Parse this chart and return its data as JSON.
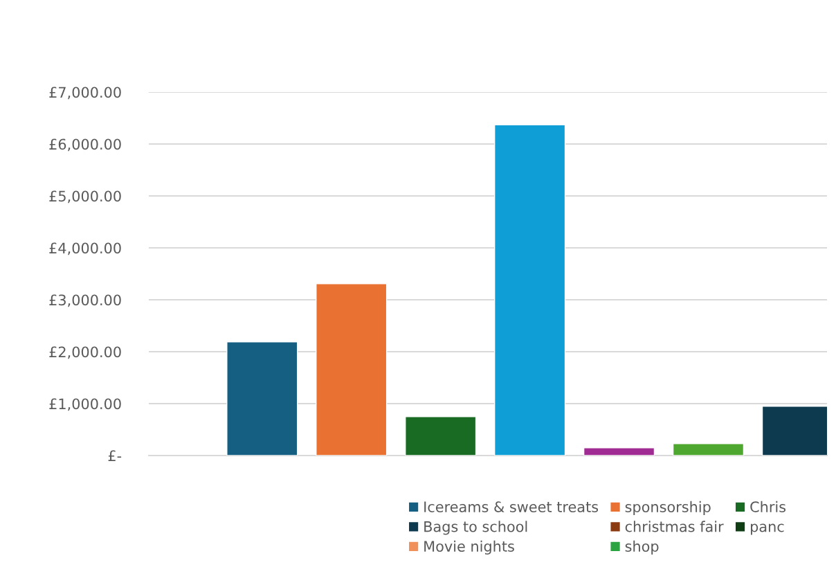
{
  "chart_data": {
    "type": "bar",
    "categories": [
      null,
      null,
      null,
      null,
      null,
      null,
      null
    ],
    "series": [
      {
        "name": "Icereams & sweet treats",
        "color": "#156082",
        "values": [
          2190,
          null,
          null,
          null,
          null,
          null,
          null
        ]
      },
      {
        "name": "sponsorship",
        "color": "#e97132",
        "values": [
          null,
          3310,
          null,
          null,
          null,
          null,
          null
        ]
      },
      {
        "name": "Chris",
        "color": "#196b24",
        "values": [
          null,
          null,
          750,
          null,
          null,
          null,
          null
        ]
      },
      {
        "name": "Bags to school",
        "color": "#0e3a4f",
        "values": [
          null,
          null,
          null,
          null,
          null,
          null,
          950
        ]
      },
      {
        "name": "christmas fair",
        "color": "#8b3a10",
        "values": [
          null,
          null,
          null,
          null,
          null,
          null,
          null
        ]
      },
      {
        "name": "panc",
        "color": "#0f3d14",
        "values": [
          null,
          null,
          null,
          null,
          null,
          null,
          null
        ]
      },
      {
        "name": "Movie nights",
        "color": "#f0905a",
        "values": [
          null,
          null,
          null,
          null,
          null,
          null,
          null
        ]
      },
      {
        "name": "shop",
        "color": "#2aa340",
        "values": [
          null,
          null,
          null,
          null,
          null,
          null,
          null
        ]
      },
      {
        "color": "#0f9ed5",
        "values": [
          null,
          null,
          null,
          6370,
          null,
          null,
          null
        ]
      },
      {
        "color": "#a02b93",
        "values": [
          null,
          null,
          null,
          null,
          150,
          null,
          null
        ]
      },
      {
        "color": "#4ea72e",
        "values": [
          null,
          null,
          null,
          null,
          null,
          230,
          null
        ]
      }
    ],
    "ylim": [
      0,
      7000
    ],
    "yticks": [
      {
        "value": 0,
        "label": "£-"
      },
      {
        "value": 1000,
        "label": "£1,000.00"
      },
      {
        "value": 2000,
        "label": "£2,000.00"
      },
      {
        "value": 3000,
        "label": "£3,000.00"
      },
      {
        "value": 4000,
        "label": "£4,000.00"
      },
      {
        "value": 5000,
        "label": "£5,000.00"
      },
      {
        "value": 6000,
        "label": "£6,000.00"
      },
      {
        "value": 7000,
        "label": "£7,000.00"
      }
    ],
    "grid": "y",
    "legend": "bottom",
    "stacked": true
  }
}
